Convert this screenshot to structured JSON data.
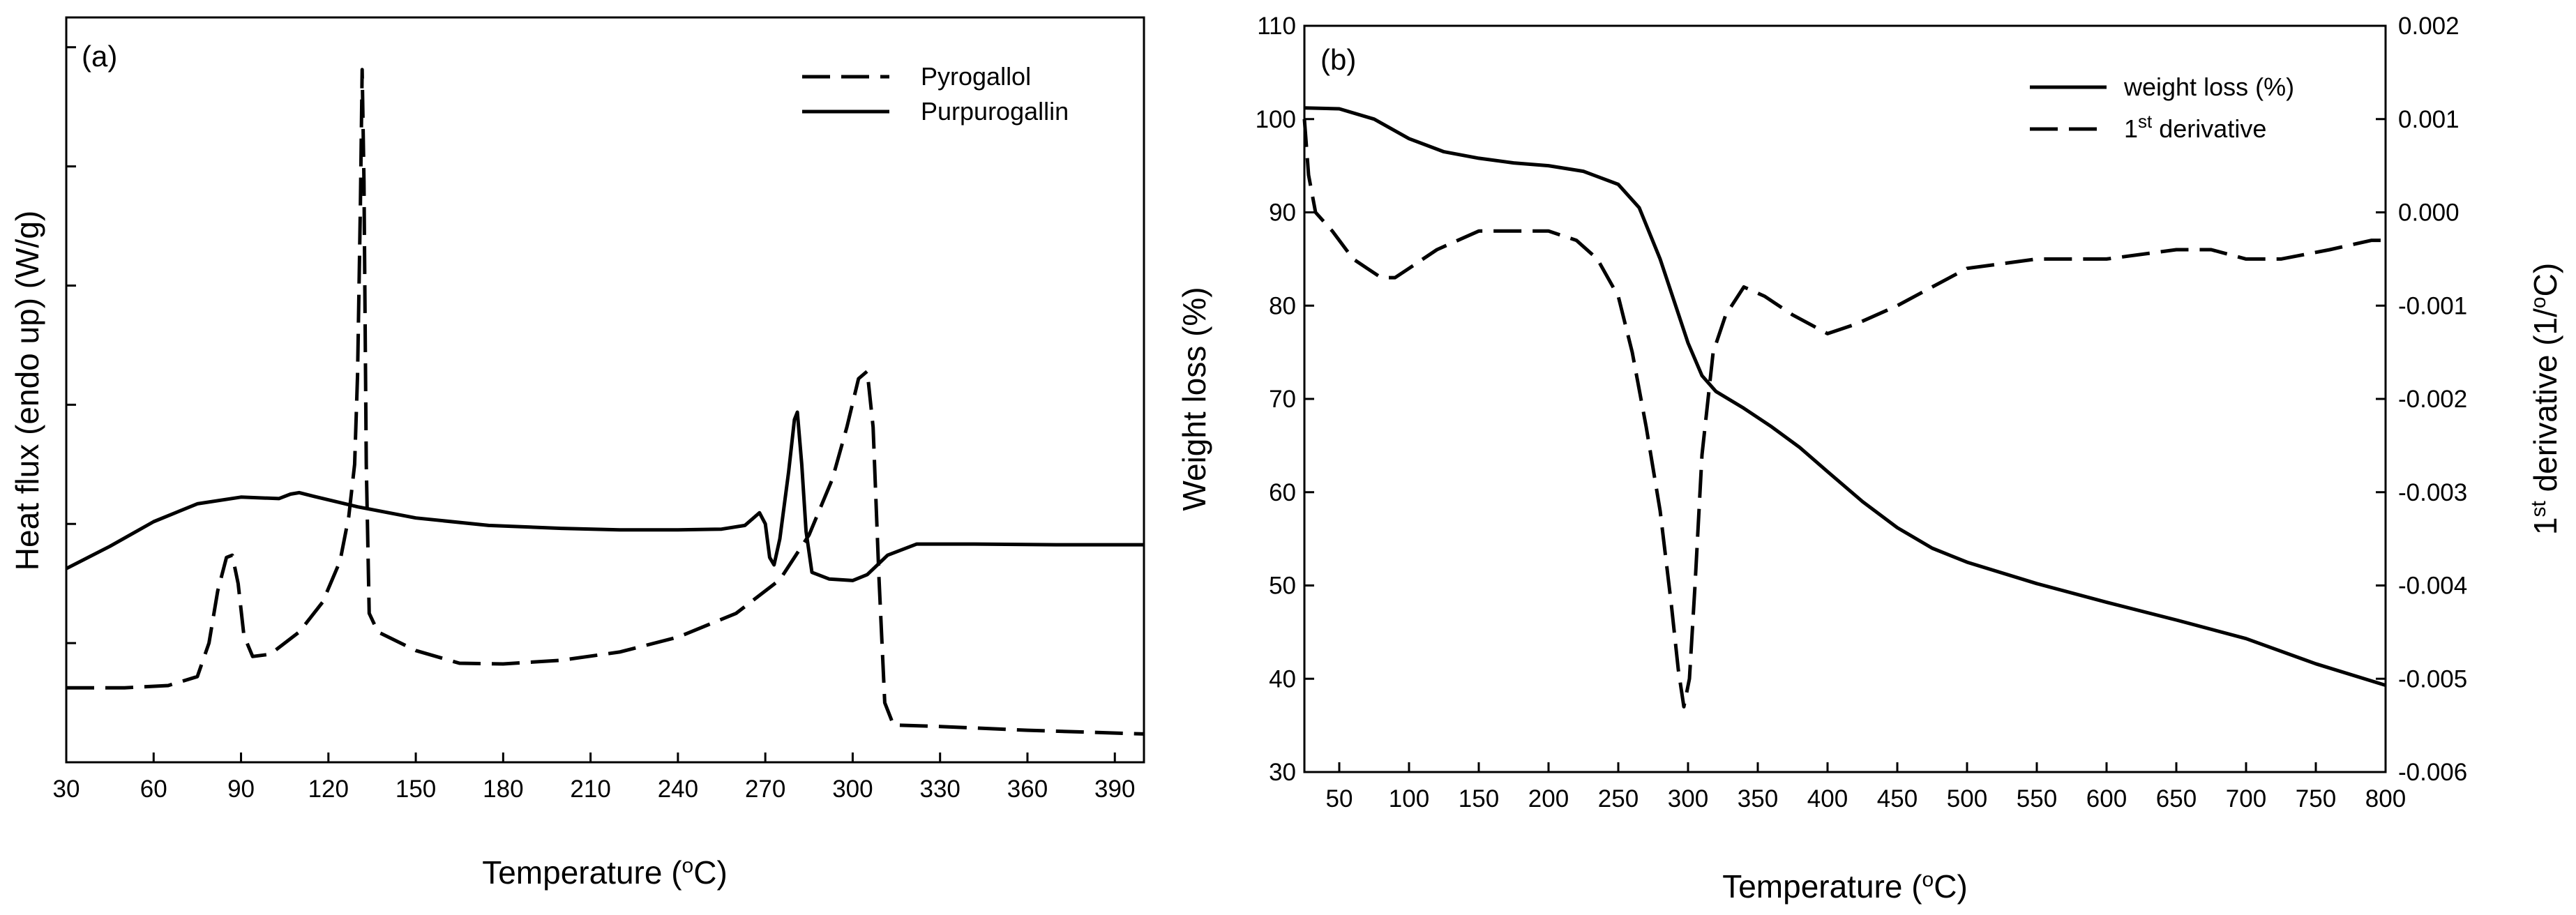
{
  "chart_data": [
    {
      "type": "line",
      "panel_label": "(a)",
      "xlabel_main": "Temperature (",
      "xlabel_sup": "o",
      "xlabel_end": "C)",
      "ylabel": "Heat flux (endo up) (W/g)",
      "xlim": [
        30,
        400
      ],
      "ylim": [
        0,
        100
      ],
      "y_ticks_unlabeled": [
        0,
        16,
        32,
        48,
        64,
        80,
        96
      ],
      "x_ticks": [
        30,
        60,
        90,
        120,
        150,
        180,
        210,
        240,
        270,
        300,
        330,
        360,
        390
      ],
      "legend_position": "top-right",
      "series": [
        {
          "name": "Pyrogallol",
          "style": "dashed",
          "points": [
            [
              30,
              10
            ],
            [
              50,
              10
            ],
            [
              65,
              10.3
            ],
            [
              75,
              11.5
            ],
            [
              79,
              16
            ],
            [
              82,
              23
            ],
            [
              85,
              27.5
            ],
            [
              87,
              27.8
            ],
            [
              89,
              24
            ],
            [
              91,
              17
            ],
            [
              94,
              14.2
            ],
            [
              100,
              14.5
            ],
            [
              110,
              17.5
            ],
            [
              118,
              21.5
            ],
            [
              124,
              27
            ],
            [
              127,
              33
            ],
            [
              129,
              40
            ],
            [
              130,
              52
            ],
            [
              131,
              75
            ],
            [
              131.6,
              93
            ],
            [
              132.2,
              78
            ],
            [
              133,
              40
            ],
            [
              134,
              20
            ],
            [
              137,
              17.5
            ],
            [
              150,
              15
            ],
            [
              165,
              13.3
            ],
            [
              180,
              13.2
            ],
            [
              200,
              13.7
            ],
            [
              220,
              14.8
            ],
            [
              240,
              16.8
            ],
            [
              260,
              20
            ],
            [
              275,
              24.5
            ],
            [
              285,
              30.5
            ],
            [
              293,
              38
            ],
            [
              298,
              45
            ],
            [
              302,
              51.5
            ],
            [
              305,
              52.5
            ],
            [
              307,
              45
            ],
            [
              309,
              25
            ],
            [
              311,
              8
            ],
            [
              314,
              5
            ],
            [
              330,
              4.8
            ],
            [
              360,
              4.3
            ],
            [
              400,
              3.8
            ]
          ]
        },
        {
          "name": "Purpurogallin",
          "style": "solid",
          "points": [
            [
              30,
              26
            ],
            [
              45,
              29
            ],
            [
              60,
              32.3
            ],
            [
              75,
              34.7
            ],
            [
              90,
              35.6
            ],
            [
              103,
              35.4
            ],
            [
              107,
              36
            ],
            [
              110,
              36.2
            ],
            [
              115,
              35.7
            ],
            [
              130,
              34.3
            ],
            [
              150,
              32.8
            ],
            [
              175,
              31.8
            ],
            [
              200,
              31.4
            ],
            [
              220,
              31.2
            ],
            [
              240,
              31.2
            ],
            [
              255,
              31.3
            ],
            [
              263,
              31.8
            ],
            [
              268,
              33.5
            ],
            [
              270,
              32
            ],
            [
              271.5,
              27.5
            ],
            [
              273,
              26.5
            ],
            [
              275,
              30
            ],
            [
              278,
              39
            ],
            [
              280,
              46
            ],
            [
              281,
              47
            ],
            [
              282.5,
              40
            ],
            [
              284,
              31
            ],
            [
              286,
              25.5
            ],
            [
              292,
              24.6
            ],
            [
              300,
              24.4
            ],
            [
              305,
              25.2
            ],
            [
              312,
              27.8
            ],
            [
              322,
              29.3
            ],
            [
              340,
              29.3
            ],
            [
              370,
              29.2
            ],
            [
              400,
              29.2
            ]
          ]
        }
      ]
    },
    {
      "type": "line",
      "panel_label": "(b)",
      "xlabel_main": "Temperature (",
      "xlabel_sup": "o",
      "xlabel_end": "C)",
      "ylabel": "Weight loss (%)",
      "y2label_pre": "1",
      "y2label_sup": "st",
      "y2label_mid": " derivative (1/",
      "y2label_sup2": "o",
      "y2label_end": "C)",
      "xlim": [
        25,
        800
      ],
      "ylim": [
        30,
        110
      ],
      "y2lim": [
        -0.006,
        0.002
      ],
      "x_ticks": [
        50,
        100,
        150,
        200,
        250,
        300,
        350,
        400,
        450,
        500,
        550,
        600,
        650,
        700,
        750,
        800
      ],
      "y_ticks": [
        30,
        40,
        50,
        60,
        70,
        80,
        90,
        100,
        110
      ],
      "y2_ticks": [
        -0.006,
        -0.005,
        -0.004,
        -0.003,
        -0.002,
        -0.001,
        0.0,
        0.001,
        0.002
      ],
      "y2_tick_labels": [
        "-0.006",
        "-0.005",
        "-0.004",
        "-0.003",
        "-0.002",
        "-0.001",
        "0.000",
        "0.001",
        "0.002"
      ],
      "legend_position": "top-right",
      "legend": {
        "weight_loss": "weight loss (%)",
        "derivative_pre": "1",
        "derivative_sup": "st",
        "derivative_post": " derivative"
      },
      "series": [
        {
          "name": "weight loss (%)",
          "axis": "left",
          "style": "solid",
          "points": [
            [
              25,
              101.2
            ],
            [
              50,
              101.1
            ],
            [
              75,
              100
            ],
            [
              100,
              97.9
            ],
            [
              125,
              96.5
            ],
            [
              150,
              95.8
            ],
            [
              175,
              95.3
            ],
            [
              200,
              95
            ],
            [
              225,
              94.4
            ],
            [
              250,
              93
            ],
            [
              265,
              90.5
            ],
            [
              280,
              85
            ],
            [
              290,
              80.5
            ],
            [
              300,
              76
            ],
            [
              310,
              72.5
            ],
            [
              320,
              70.8
            ],
            [
              340,
              69
            ],
            [
              360,
              67
            ],
            [
              380,
              64.8
            ],
            [
              400,
              62.2
            ],
            [
              425,
              59
            ],
            [
              450,
              56.2
            ],
            [
              475,
              54
            ],
            [
              500,
              52.5
            ],
            [
              550,
              50.2
            ],
            [
              600,
              48.2
            ],
            [
              650,
              46.3
            ],
            [
              700,
              44.3
            ],
            [
              750,
              41.6
            ],
            [
              800,
              39.3
            ]
          ]
        },
        {
          "name": "1st derivative",
          "axis": "right",
          "style": "dashed",
          "points": [
            [
              25,
              0.001
            ],
            [
              28,
              0.0004
            ],
            [
              33,
              0.0
            ],
            [
              45,
              -0.0002
            ],
            [
              60,
              -0.0005
            ],
            [
              70,
              -0.0006
            ],
            [
              80,
              -0.0007
            ],
            [
              90,
              -0.0007
            ],
            [
              100,
              -0.0006
            ],
            [
              120,
              -0.0004
            ],
            [
              150,
              -0.0002
            ],
            [
              175,
              -0.0002
            ],
            [
              200,
              -0.0002
            ],
            [
              220,
              -0.0003
            ],
            [
              235,
              -0.0005
            ],
            [
              250,
              -0.0009
            ],
            [
              260,
              -0.0015
            ],
            [
              270,
              -0.0023
            ],
            [
              280,
              -0.0032
            ],
            [
              288,
              -0.0042
            ],
            [
              293,
              -0.0049
            ],
            [
              297,
              -0.0053
            ],
            [
              301,
              -0.005
            ],
            [
              305,
              -0.004
            ],
            [
              310,
              -0.0026
            ],
            [
              318,
              -0.0015
            ],
            [
              327,
              -0.0011
            ],
            [
              340,
              -0.0008
            ],
            [
              355,
              -0.0009
            ],
            [
              375,
              -0.0011
            ],
            [
              400,
              -0.0013
            ],
            [
              420,
              -0.0012
            ],
            [
              450,
              -0.001
            ],
            [
              475,
              -0.0008
            ],
            [
              500,
              -0.0006
            ],
            [
              550,
              -0.0005
            ],
            [
              600,
              -0.0005
            ],
            [
              650,
              -0.0004
            ],
            [
              675,
              -0.0004
            ],
            [
              700,
              -0.0005
            ],
            [
              725,
              -0.0005
            ],
            [
              760,
              -0.0004
            ],
            [
              790,
              -0.0003
            ],
            [
              800,
              -0.0003
            ]
          ]
        }
      ]
    }
  ]
}
